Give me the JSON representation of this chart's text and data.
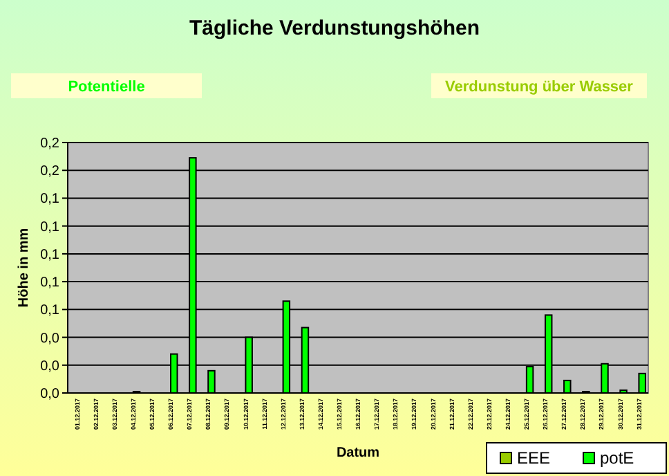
{
  "chart_data": {
    "type": "bar",
    "title": "Tägliche Verdunstungshöhen",
    "xlabel": "Datum",
    "ylabel": "Höhe in mm",
    "annotations": [
      "Potentielle",
      "Verdunstung über Wasser"
    ],
    "categories": [
      "01.12.2017",
      "02.12.2017",
      "03.12.2017",
      "04.12.2017",
      "05.12.2017",
      "06.12.2017",
      "07.12.2017",
      "08.12.2017",
      "09.12.2017",
      "10.12.2017",
      "11.12.2017",
      "12.12.2017",
      "13.12.2017",
      "14.12.2017",
      "15.12.2017",
      "16.12.2017",
      "17.12.2017",
      "18.12.2017",
      "19.12.2017",
      "20.12.2017",
      "21.12.2017",
      "22.12.2017",
      "23.12.2017",
      "24.12.2017",
      "25.12.2017",
      "26.12.2017",
      "27.12.2017",
      "28.12.2017",
      "29.12.2017",
      "30.12.2017",
      "31.12.2017"
    ],
    "series": [
      {
        "name": "EEE",
        "color": "#99cc00",
        "values": [
          null,
          null,
          null,
          null,
          null,
          null,
          null,
          null,
          null,
          null,
          null,
          null,
          null,
          null,
          null,
          null,
          null,
          null,
          null,
          null,
          null,
          null,
          null,
          null,
          null,
          null,
          null,
          null,
          null,
          null,
          null
        ]
      },
      {
        "name": "potE",
        "color": "#00ff00",
        "values": [
          0,
          0,
          0,
          0.001,
          0,
          0.028,
          0.169,
          0.016,
          0,
          0.04,
          0,
          0.066,
          0.047,
          0,
          0,
          0,
          0,
          0,
          0,
          0,
          0,
          0,
          0,
          0,
          0.019,
          0.056,
          0.009,
          0.001,
          0.021,
          0.002,
          0.014
        ]
      }
    ],
    "ylim": [
      0,
      0.18
    ],
    "yticks": [
      {
        "value": 0,
        "label": "0,0"
      },
      {
        "value": 0.02,
        "label": "0,0"
      },
      {
        "value": 0.04,
        "label": "0,0"
      },
      {
        "value": 0.06,
        "label": "0,1"
      },
      {
        "value": 0.08,
        "label": "0,1"
      },
      {
        "value": 0.1,
        "label": "0,1"
      },
      {
        "value": 0.12,
        "label": "0,1"
      },
      {
        "value": 0.14,
        "label": "0,1"
      },
      {
        "value": 0.16,
        "label": "0,2"
      },
      {
        "value": 0.18,
        "label": "0,2"
      }
    ],
    "grid": "y",
    "legend": "bottom right"
  }
}
